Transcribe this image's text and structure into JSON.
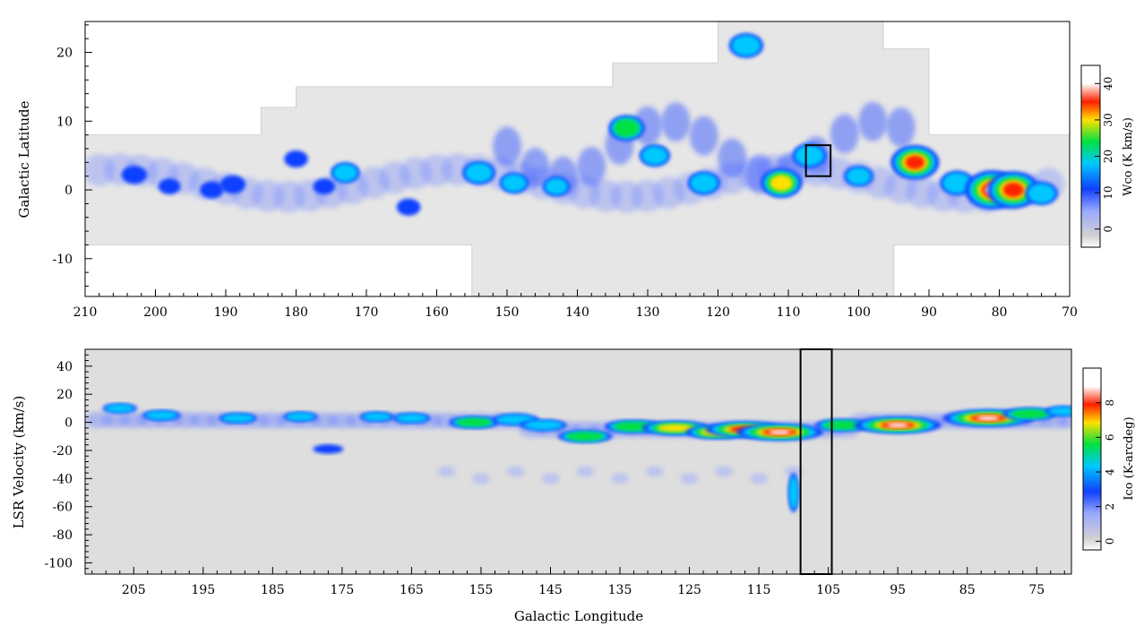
{
  "chart_data": [
    {
      "type": "heatmap",
      "title": "",
      "xlabel": "",
      "ylabel": "Galactic Latitude",
      "xlim": [
        210,
        70
      ],
      "ylim": [
        -15.5,
        24.5
      ],
      "xticks": [
        210,
        200,
        190,
        180,
        170,
        160,
        150,
        140,
        130,
        120,
        110,
        100,
        90,
        80,
        70
      ],
      "yticks": [
        -10,
        0,
        10,
        20
      ],
      "colorbar": {
        "label": "Wco (K km/s)",
        "range": [
          -5,
          45
        ],
        "ticks": [
          0,
          10,
          20,
          30,
          40
        ]
      },
      "colormap": [
        "#d2d2d2",
        "#1040ff",
        "#00c8ff",
        "#00e040",
        "#ffe000",
        "#ff2000",
        "#ffffff"
      ],
      "coverage_boundary": [
        [
          210,
          8
        ],
        [
          185,
          8
        ],
        [
          185,
          12
        ],
        [
          180,
          12
        ],
        [
          180,
          15
        ],
        [
          135,
          15
        ],
        [
          135,
          18.5
        ],
        [
          120,
          18.5
        ],
        [
          120,
          24.5
        ],
        [
          96.5,
          24.5
        ],
        [
          96.5,
          20.5
        ],
        [
          90,
          20.5
        ],
        [
          90,
          8
        ],
        [
          70,
          8
        ],
        [
          70,
          -8
        ],
        [
          95,
          -8
        ],
        [
          95,
          -15.5
        ],
        [
          155,
          -15.5
        ],
        [
          155,
          -8
        ],
        [
          210,
          -8
        ]
      ],
      "annotation_box": {
        "l": [
          104,
          107.5
        ],
        "b": [
          2,
          6.5
        ]
      },
      "emission_clumps": [
        {
          "l": 203,
          "b": 2.2,
          "w": 12
        },
        {
          "l": 198,
          "b": 0.5,
          "w": 8
        },
        {
          "l": 192,
          "b": 0,
          "w": 10
        },
        {
          "l": 189,
          "b": 0.8,
          "w": 12
        },
        {
          "l": 180,
          "b": 4.5,
          "w": 10
        },
        {
          "l": 176,
          "b": 0.5,
          "w": 8
        },
        {
          "l": 173,
          "b": 2.5,
          "w": 16
        },
        {
          "l": 164,
          "b": -2.5,
          "w": 10
        },
        {
          "l": 154,
          "b": 2.5,
          "w": 20
        },
        {
          "l": 149,
          "b": 1,
          "w": 16
        },
        {
          "l": 143,
          "b": 0.5,
          "w": 14
        },
        {
          "l": 133,
          "b": 9,
          "w": 24
        },
        {
          "l": 129,
          "b": 5,
          "w": 18
        },
        {
          "l": 122,
          "b": 1,
          "w": 20
        },
        {
          "l": 116,
          "b": 21,
          "w": 22
        },
        {
          "l": 111,
          "b": 1,
          "w": 30
        },
        {
          "l": 107,
          "b": 5,
          "w": 22
        },
        {
          "l": 100,
          "b": 2,
          "w": 16
        },
        {
          "l": 92,
          "b": 4,
          "w": 38
        },
        {
          "l": 86,
          "b": 1,
          "w": 22
        },
        {
          "l": 81,
          "b": 0,
          "w": 45
        },
        {
          "l": 78,
          "b": 0,
          "w": 42
        },
        {
          "l": 74,
          "b": -0.5,
          "w": 20
        }
      ]
    },
    {
      "type": "heatmap",
      "title": "",
      "xlabel": "Galactic Longitude",
      "ylabel": "LSR Velocity (km/s)",
      "xlim": [
        212,
        70
      ],
      "ylim": [
        -108,
        52
      ],
      "xticks": [
        205,
        195,
        185,
        175,
        165,
        155,
        145,
        135,
        125,
        115,
        105,
        95,
        85,
        75
      ],
      "yticks": [
        -100,
        -80,
        -60,
        -40,
        -20,
        0,
        20,
        40
      ],
      "colorbar": {
        "label": "Ico (K-arcdeg)",
        "range": [
          -0.5,
          10
        ],
        "ticks": [
          0,
          2,
          4,
          6,
          8
        ]
      },
      "colormap": [
        "#d2d2d2",
        "#1040ff",
        "#00c8ff",
        "#00e040",
        "#ffe000",
        "#ff2000",
        "#ffffff"
      ],
      "annotation_box": {
        "l": [
          104.5,
          109
        ],
        "v": [
          -108,
          52
        ]
      },
      "emission_clumps": [
        {
          "l": 207,
          "v": 10,
          "w": 2.5
        },
        {
          "l": 201,
          "v": 5,
          "w": 3
        },
        {
          "l": 190,
          "v": 3,
          "w": 3
        },
        {
          "l": 181,
          "v": 4,
          "w": 2.5
        },
        {
          "l": 177,
          "v": -19,
          "w": 2
        },
        {
          "l": 170,
          "v": 4,
          "w": 2.5
        },
        {
          "l": 165,
          "v": 3,
          "w": 3
        },
        {
          "l": 156,
          "v": 0,
          "w": 4.5
        },
        {
          "l": 150,
          "v": 2,
          "w": 4
        },
        {
          "l": 146,
          "v": -2,
          "w": 4
        },
        {
          "l": 140,
          "v": -10,
          "w": 5
        },
        {
          "l": 133,
          "v": -3,
          "w": 5.5
        },
        {
          "l": 127,
          "v": -4,
          "w": 6.5
        },
        {
          "l": 121,
          "v": -7,
          "w": 6
        },
        {
          "l": 117,
          "v": -5,
          "w": 8
        },
        {
          "l": 112,
          "v": -7,
          "w": 9
        },
        {
          "l": 110,
          "v": -50,
          "w": 3
        },
        {
          "l": 103,
          "v": -2,
          "w": 5
        },
        {
          "l": 95,
          "v": -2,
          "w": 9
        },
        {
          "l": 82,
          "v": 3,
          "w": 9.5
        },
        {
          "l": 76,
          "v": 6,
          "w": 5
        },
        {
          "l": 71,
          "v": 8,
          "w": 3
        }
      ]
    }
  ]
}
